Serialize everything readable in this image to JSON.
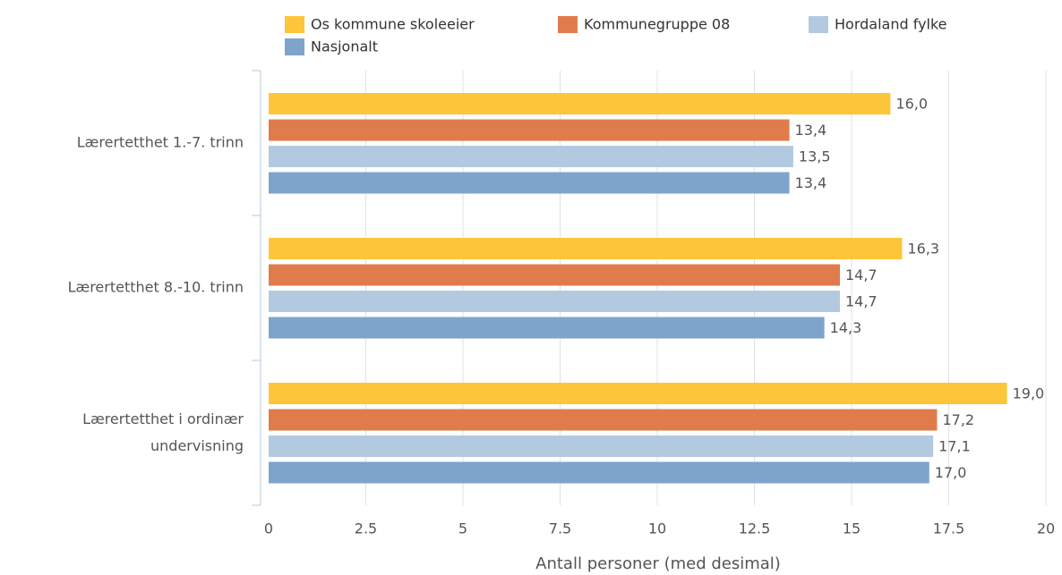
{
  "chart_data": {
    "type": "hbar",
    "categories": [
      "Lærertetthet 1.-7. trinn",
      "Lærertetthet 8.-10. trinn",
      "Lærertetthet i ordinær undervisning"
    ],
    "series": [
      {
        "name": "Os kommune skoleeier",
        "color": "#fdc53a",
        "values": [
          16.0,
          16.3,
          19.0
        ],
        "value_labels": [
          "16,0",
          "16,3",
          "19,0"
        ]
      },
      {
        "name": "Kommunegruppe 08",
        "color": "#e07c4c",
        "values": [
          13.4,
          14.7,
          17.2
        ],
        "value_labels": [
          "13,4",
          "14,7",
          "17,2"
        ]
      },
      {
        "name": "Hordaland fylke",
        "color": "#b3c9e0",
        "values": [
          13.5,
          14.7,
          17.1
        ],
        "value_labels": [
          "13,5",
          "14,7",
          "17,1"
        ]
      },
      {
        "name": "Nasjonalt",
        "color": "#7fa4cc",
        "values": [
          13.4,
          14.3,
          17.0
        ],
        "value_labels": [
          "13,4",
          "14,3",
          "17,0"
        ]
      }
    ],
    "xlabel": "Antall personer (med desimal)",
    "xlim": [
      0,
      20
    ],
    "xticks": [
      0,
      2.5,
      5,
      7.5,
      10,
      12.5,
      15,
      17.5,
      20
    ],
    "grid": true
  }
}
